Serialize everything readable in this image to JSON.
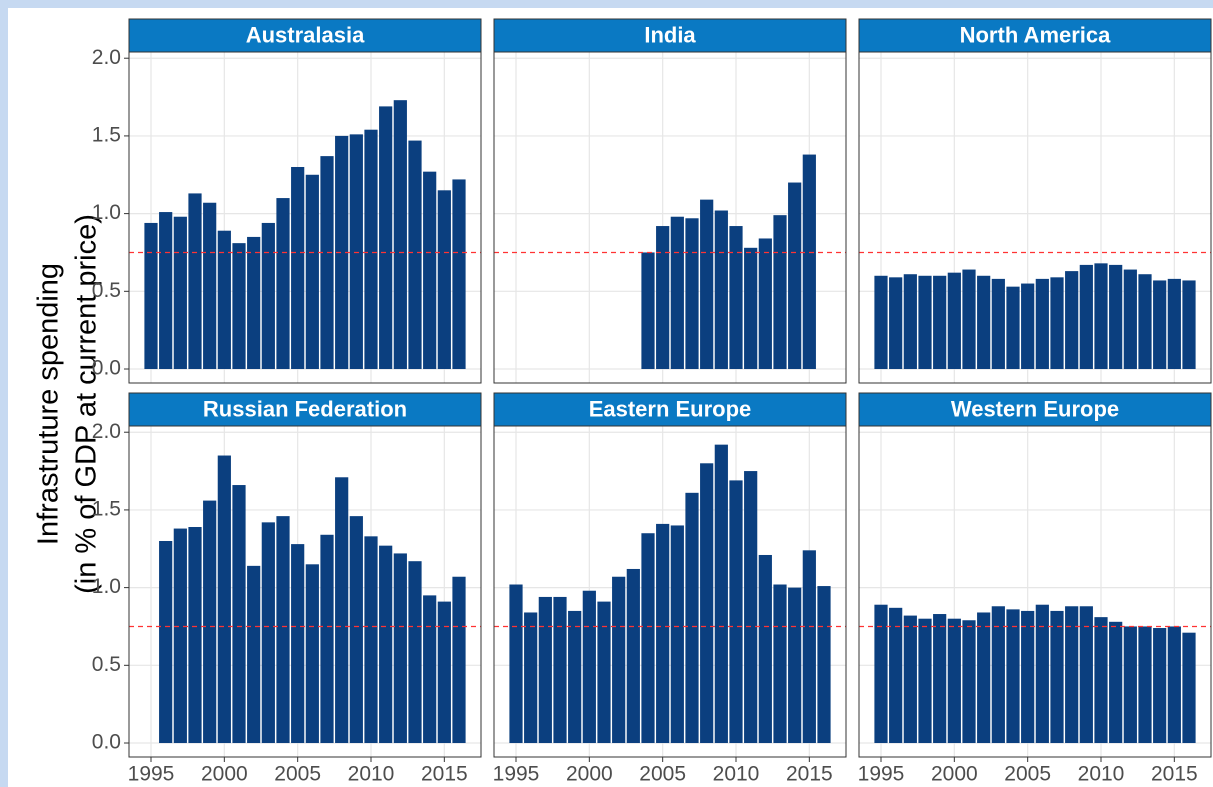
{
  "chart_data": {
    "type": "bar",
    "y_label": [
      "Infrastruture spending",
      "(in % of GDP at current price)"
    ],
    "color": "#0b3f7f",
    "strip_color": "#0a79c3",
    "reference_line": 0.75,
    "reference_color": "#ff3333",
    "xlim": [
      1993.5,
      2017.5
    ],
    "xticks": [
      1995,
      2000,
      2005,
      2010,
      2015
    ],
    "ylim": [
      -0.09,
      2.04
    ],
    "yticks": [
      {
        "value": 0,
        "label": "0.0"
      },
      {
        "value": 0.5,
        "label": "0.5"
      },
      {
        "value": 1,
        "label": "1.0"
      },
      {
        "value": 1.5,
        "label": "1.5"
      },
      {
        "value": 2,
        "label": "2.0"
      }
    ],
    "grid": true,
    "facets": [
      {
        "title": "Australasia",
        "x": [
          1995,
          1996,
          1997,
          1998,
          1999,
          2000,
          2001,
          2002,
          2003,
          2004,
          2005,
          2006,
          2007,
          2008,
          2009,
          2010,
          2011,
          2012,
          2013,
          2014,
          2015,
          2016
        ],
        "values": [
          0.94,
          1.01,
          0.98,
          1.13,
          1.07,
          0.89,
          0.81,
          0.85,
          0.94,
          1.1,
          1.3,
          1.25,
          1.37,
          1.5,
          1.51,
          1.54,
          1.69,
          1.73,
          1.47,
          1.27,
          1.15,
          1.22
        ]
      },
      {
        "title": "India",
        "x": [
          2004,
          2005,
          2006,
          2007,
          2008,
          2009,
          2010,
          2011,
          2012,
          2013,
          2014,
          2015
        ],
        "values": [
          0.75,
          0.92,
          0.98,
          0.97,
          1.09,
          1.02,
          0.92,
          0.78,
          0.84,
          0.99,
          1.2,
          1.38
        ]
      },
      {
        "title": "North America",
        "x": [
          1995,
          1996,
          1997,
          1998,
          1999,
          2000,
          2001,
          2002,
          2003,
          2004,
          2005,
          2006,
          2007,
          2008,
          2009,
          2010,
          2011,
          2012,
          2013,
          2014,
          2015,
          2016
        ],
        "values": [
          0.6,
          0.59,
          0.61,
          0.6,
          0.6,
          0.62,
          0.64,
          0.6,
          0.58,
          0.53,
          0.55,
          0.58,
          0.59,
          0.63,
          0.67,
          0.68,
          0.67,
          0.64,
          0.61,
          0.57,
          0.58,
          0.57
        ]
      },
      {
        "title": "Russian Federation",
        "x": [
          1996,
          1997,
          1998,
          1999,
          2000,
          2001,
          2002,
          2003,
          2004,
          2005,
          2006,
          2007,
          2008,
          2009,
          2010,
          2011,
          2012,
          2013,
          2014,
          2015,
          2016
        ],
        "values": [
          1.3,
          1.38,
          1.39,
          1.56,
          1.85,
          1.66,
          1.14,
          1.42,
          1.46,
          1.28,
          1.15,
          1.34,
          1.71,
          1.46,
          1.33,
          1.27,
          1.22,
          1.17,
          0.95,
          0.91,
          1.07
        ]
      },
      {
        "title": "Eastern Europe",
        "x": [
          1995,
          1996,
          1997,
          1998,
          1999,
          2000,
          2001,
          2002,
          2003,
          2004,
          2005,
          2006,
          2007,
          2008,
          2009,
          2010,
          2011,
          2012,
          2013,
          2014,
          2015,
          2016
        ],
        "values": [
          1.02,
          0.84,
          0.94,
          0.94,
          0.85,
          0.98,
          0.91,
          1.07,
          1.12,
          1.35,
          1.41,
          1.4,
          1.61,
          1.8,
          1.92,
          1.69,
          1.75,
          1.21,
          1.02,
          1.0,
          1.24,
          1.01
        ]
      },
      {
        "title": "Western Europe",
        "x": [
          1995,
          1996,
          1997,
          1998,
          1999,
          2000,
          2001,
          2002,
          2003,
          2004,
          2005,
          2006,
          2007,
          2008,
          2009,
          2010,
          2011,
          2012,
          2013,
          2014,
          2015,
          2016
        ],
        "values": [
          0.89,
          0.87,
          0.82,
          0.8,
          0.83,
          0.8,
          0.79,
          0.84,
          0.88,
          0.86,
          0.85,
          0.89,
          0.85,
          0.88,
          0.88,
          0.81,
          0.78,
          0.75,
          0.75,
          0.74,
          0.75,
          0.71
        ]
      }
    ]
  }
}
